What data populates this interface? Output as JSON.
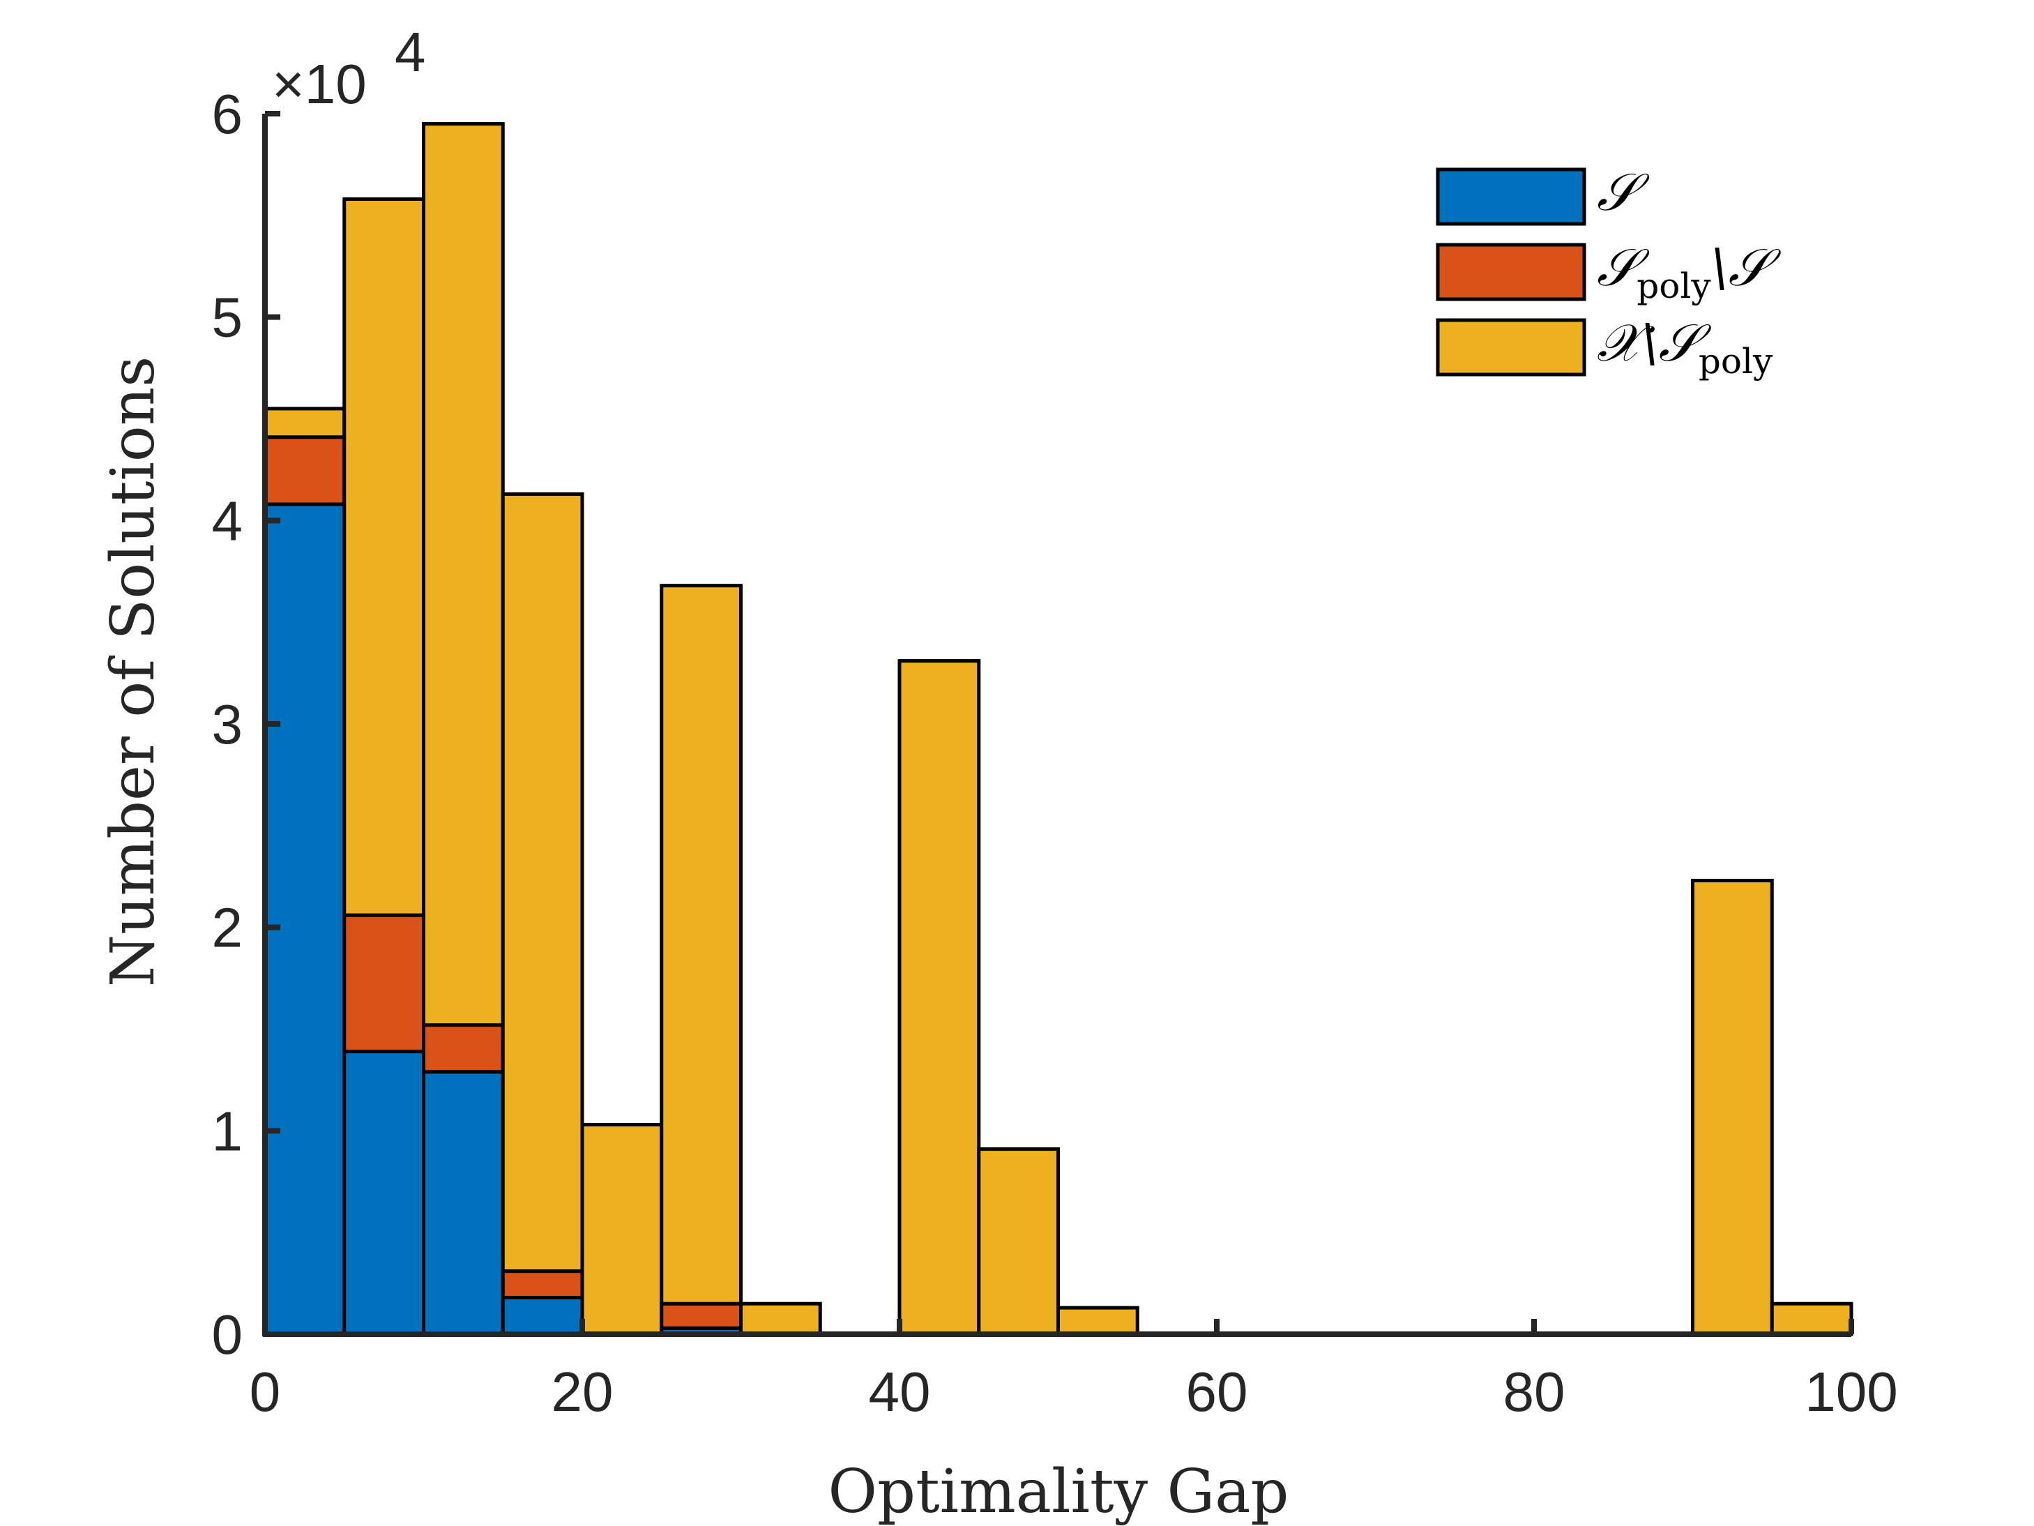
{
  "chart_data": {
    "type": "bar",
    "stacked": true,
    "bin_edges": [
      0,
      5,
      10,
      15,
      20,
      25,
      30,
      35,
      40,
      45,
      50,
      55,
      60,
      65,
      70,
      75,
      80,
      85,
      90,
      95,
      100
    ],
    "series": [
      {
        "name": "S",
        "legend_main": "𝒮",
        "legend_sub": "",
        "legend_tail": "",
        "legend_tail_sub": "",
        "color": "#0072BD",
        "values": [
          40800,
          13900,
          12900,
          1800,
          0,
          300,
          0,
          0,
          0,
          0,
          0,
          0,
          0,
          0,
          0,
          0,
          0,
          0,
          0,
          0
        ]
      },
      {
        "name": "S_poly \\ S",
        "legend_main": "𝒮",
        "legend_sub": "poly",
        "legend_tail": "\\𝒮",
        "legend_tail_sub": "",
        "color": "#D95319",
        "values": [
          3300,
          6700,
          2300,
          1300,
          0,
          1200,
          0,
          0,
          0,
          0,
          0,
          0,
          0,
          0,
          0,
          0,
          0,
          0,
          0,
          0
        ]
      },
      {
        "name": "X \\ S_poly",
        "legend_main": "𝒳\\𝒮",
        "legend_sub": "",
        "legend_tail": "",
        "legend_tail_sub": "poly",
        "color": "#EDB120",
        "values": [
          1400,
          35200,
          44300,
          38200,
          10300,
          35300,
          1500,
          0,
          33100,
          9100,
          1300,
          0,
          0,
          0,
          0,
          0,
          0,
          0,
          22300,
          1500
        ]
      }
    ],
    "xlabel": "Optimality Gap",
    "ylabel": "Number of Solutions",
    "xlim": [
      0,
      100
    ],
    "ylim": [
      0,
      60000
    ],
    "xticks": [
      0,
      20,
      40,
      60,
      80,
      100
    ],
    "yticks": [
      0,
      1,
      2,
      3,
      4,
      5,
      6
    ],
    "y_exponent_base": "×10",
    "y_exponent_power": "4",
    "y_scale": 10000,
    "grid": false,
    "legend_position": "top-right"
  }
}
